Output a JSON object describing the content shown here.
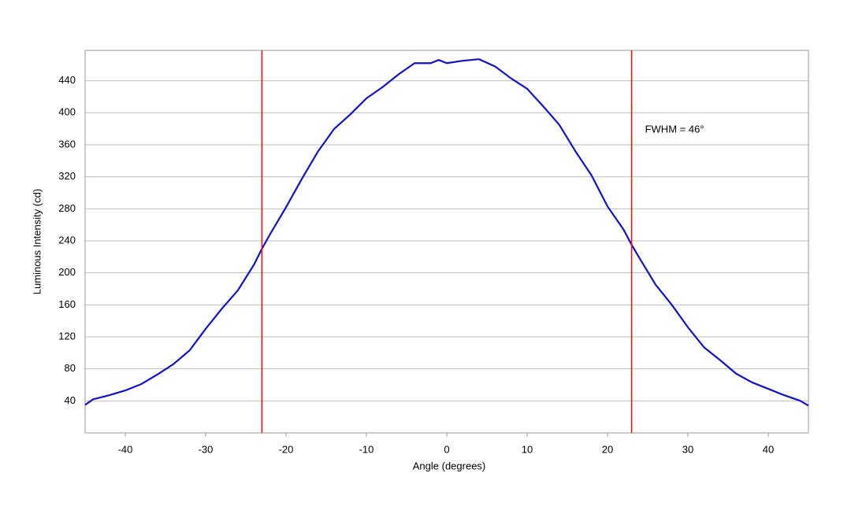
{
  "chart_data": {
    "type": "line",
    "x_label": "Angle (degrees)",
    "y_label": "Luminous Intensity (cd)",
    "annotation": "FWHM = 46°",
    "x": [
      -45,
      -44,
      -42,
      -40,
      -38,
      -36,
      -34,
      -32,
      -30,
      -28,
      -26,
      -24,
      -23,
      -22,
      -20,
      -18,
      -16,
      -14,
      -12,
      -10,
      -8,
      -6,
      -4,
      -2,
      -1,
      0,
      2,
      4,
      6,
      8,
      10,
      12,
      14,
      16,
      18,
      20,
      22,
      23,
      24,
      26,
      28,
      30,
      32,
      34,
      36,
      38,
      40,
      42,
      44,
      45
    ],
    "series": [
      {
        "name": "Intensity",
        "color": "#1212cc",
        "values": [
          35,
          42,
          47,
          53,
          61,
          73,
          86,
          103,
          130,
          155,
          178,
          210,
          230,
          248,
          282,
          318,
          352,
          380,
          398,
          418,
          432,
          448,
          462,
          462,
          466,
          462,
          465,
          467,
          458,
          443,
          430,
          408,
          385,
          352,
          322,
          283,
          254,
          235,
          218,
          185,
          160,
          132,
          107,
          91,
          74,
          63,
          55,
          47,
          40,
          34
        ]
      }
    ],
    "vlines": [
      -23,
      23
    ],
    "vline_color": "#e01818",
    "xlim": [
      -45,
      45
    ],
    "ylim": [
      0,
      478
    ],
    "xticks": [
      -40,
      -30,
      -20,
      -10,
      0,
      10,
      20,
      30,
      40
    ],
    "yticks": [
      40,
      80,
      120,
      160,
      200,
      240,
      280,
      320,
      360,
      400,
      440
    ],
    "grid": true
  }
}
